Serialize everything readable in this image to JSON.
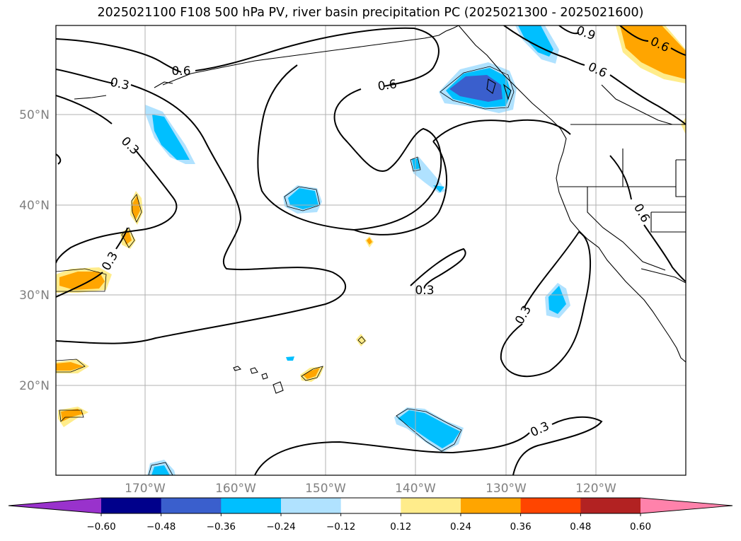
{
  "title": "2025021100 F108 500 hPa PV, river basin precipitation PC (2025021300 - 2025021600)",
  "map": {
    "lat_labels": [
      "50°N",
      "40°N",
      "30°N",
      "20°N"
    ],
    "lon_labels": [
      "170°W",
      "160°W",
      "150°W",
      "140°W",
      "130°W",
      "120°W"
    ],
    "contour_labels": [
      "0.6",
      "0.3",
      "0.3",
      "0.3",
      "0.6",
      "0.3",
      "0.3",
      "0.3",
      "0.9",
      "0.6",
      "0.6",
      "0.6"
    ]
  },
  "colorbar": {
    "ticks": [
      "−0.60",
      "−0.48",
      "−0.36",
      "−0.24",
      "−0.12",
      "0.12",
      "0.24",
      "0.36",
      "0.48",
      "0.60"
    ],
    "colors": [
      "#9932cc",
      "#00008b",
      "#3a5fcd",
      "#00bfff",
      "#b0e2ff",
      "#ffffff",
      "#ffec8b",
      "#ffa500",
      "#ff4500",
      "#b22222",
      "#ff82ab"
    ]
  }
}
